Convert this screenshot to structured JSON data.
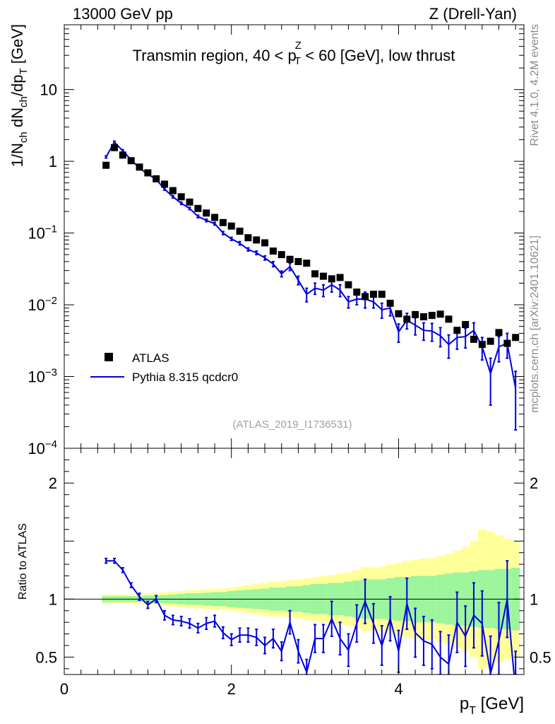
{
  "header": {
    "left": "13000 GeV pp",
    "right": "Z (Drell-Yan)"
  },
  "side_notes": {
    "rivet": "Rivet 4.1.0,  4.2M events",
    "mcplots": "mcplots.cern.ch [arXiv:2401.10621]"
  },
  "reference_id": "(ATLAS_2019_I1736531)",
  "chart_data": {
    "type": "scatter",
    "title": "Transmin region, 40 < p_T^Z < 60 [GeV], low thrust",
    "title_parts": {
      "pre": "Transmin region, 40 < p",
      "sup": "Z",
      "sub": "T",
      "post": " < 60 [GeV], low thrust"
    },
    "xlabel": "p_T [GeV]",
    "xlabel_parts": {
      "main": "p",
      "sub": "T",
      "unit": " [GeV]"
    },
    "ylabel": "1/N_ch dN_ch/dp_T [GeV]",
    "ylabel_parts": [
      "1/N",
      "ch",
      " dN",
      "ch",
      "/dp",
      "T",
      " [GeV]"
    ],
    "ratio_ylabel": "Ratio to ATLAS",
    "xlim": [
      0,
      5.5
    ],
    "ylim": [
      0.0001,
      80
    ],
    "ratio_ylim": [
      0.35,
      2.3
    ],
    "x_ticks": [
      0,
      2,
      4
    ],
    "x_tick_labels": [
      "0",
      "2",
      "4"
    ],
    "y_ticks": [
      10,
      1,
      0.1,
      0.01,
      0.001,
      0.0001
    ],
    "y_tick_labels": [
      [
        "10",
        ""
      ],
      [
        "1",
        ""
      ],
      [
        "10",
        "−1"
      ],
      [
        "10",
        "−2"
      ],
      [
        "10",
        "−3"
      ],
      [
        "10",
        "−4"
      ]
    ],
    "ratio_ticks": [
      2,
      1,
      0.5
    ],
    "ratio_tick_labels": [
      "2",
      "1",
      "0.5"
    ],
    "legend_position": "lower-left",
    "legend": [
      "ATLAS",
      "Pythia 8.315 qcdcr0"
    ],
    "colors": {
      "data": "#000000",
      "mc": "#0000dd",
      "band_inner": "#9cf59c",
      "band_outer": "#ffff99"
    },
    "x": [
      0.5,
      0.6,
      0.7,
      0.8,
      0.9,
      1.0,
      1.1,
      1.2,
      1.3,
      1.4,
      1.5,
      1.6,
      1.7,
      1.8,
      1.9,
      2.0,
      2.1,
      2.2,
      2.3,
      2.4,
      2.5,
      2.6,
      2.7,
      2.8,
      2.9,
      3.0,
      3.1,
      3.2,
      3.3,
      3.4,
      3.5,
      3.6,
      3.7,
      3.8,
      3.9,
      4.0,
      4.1,
      4.2,
      4.3,
      4.4,
      4.5,
      4.6,
      4.7,
      4.8,
      4.9,
      5.0,
      5.1,
      5.2,
      5.3,
      5.4
    ],
    "data_values": [
      0.88,
      1.55,
      1.22,
      1.02,
      0.83,
      0.69,
      0.57,
      0.48,
      0.39,
      0.32,
      0.27,
      0.22,
      0.19,
      0.165,
      0.14,
      0.125,
      0.106,
      0.086,
      0.08,
      0.073,
      0.056,
      0.05,
      0.043,
      0.04,
      0.038,
      0.027,
      0.025,
      0.023,
      0.024,
      0.019,
      0.015,
      0.013,
      0.014,
      0.014,
      0.0105,
      0.0075,
      0.0063,
      0.0073,
      0.0068,
      0.0071,
      0.0074,
      0.0063,
      0.0044,
      0.0053,
      0.0033,
      0.0028,
      0.0031,
      0.0041,
      0.0029,
      0.0035
    ],
    "mc_values": [
      1.15,
      1.85,
      1.4,
      1.05,
      0.8,
      0.66,
      0.56,
      0.41,
      0.32,
      0.26,
      0.22,
      0.17,
      0.15,
      0.135,
      0.1,
      0.083,
      0.072,
      0.059,
      0.053,
      0.045,
      0.037,
      0.027,
      0.034,
      0.022,
      0.014,
      0.017,
      0.016,
      0.019,
      0.016,
      0.011,
      0.012,
      0.012,
      0.011,
      0.0085,
      0.009,
      0.0042,
      0.0061,
      0.0052,
      0.0044,
      0.0043,
      0.0037,
      0.0028,
      0.0035,
      0.0036,
      0.0044,
      0.0026,
      0.0011,
      0.0026,
      0.0029,
      0.00068
    ],
    "mc_errors": [
      0.04,
      0.06,
      0.05,
      0.04,
      0.03,
      0.03,
      0.02,
      0.015,
      0.012,
      0.01,
      0.008,
      0.007,
      0.006,
      0.006,
      0.005,
      0.004,
      0.004,
      0.003,
      0.003,
      0.003,
      0.003,
      0.0025,
      0.004,
      0.003,
      0.003,
      0.003,
      0.003,
      0.004,
      0.003,
      0.002,
      0.002,
      0.003,
      0.002,
      0.002,
      0.002,
      0.0012,
      0.0015,
      0.0014,
      0.0012,
      0.0012,
      0.0011,
      0.001,
      0.0011,
      0.0011,
      0.0012,
      0.0009,
      0.0007,
      0.001,
      0.0011,
      0.0005
    ],
    "mc_ratio": [
      1.33,
      1.33,
      1.25,
      1.12,
      1.02,
      0.95,
      1.0,
      0.86,
      0.82,
      0.81,
      0.79,
      0.75,
      0.79,
      0.81,
      0.71,
      0.65,
      0.69,
      0.69,
      0.67,
      0.6,
      0.66,
      0.55,
      0.8,
      0.55,
      0.37,
      0.66,
      0.66,
      0.83,
      0.66,
      0.56,
      0.79,
      0.98,
      0.79,
      0.6,
      0.83,
      0.55,
      0.96,
      0.71,
      0.64,
      0.61,
      0.5,
      0.44,
      0.8,
      0.68,
      0.86,
      0.79,
      0.36,
      0.64,
      1.0,
      0.2
    ],
    "mc_ratio_errors": [
      0.02,
      0.02,
      0.02,
      0.02,
      0.03,
      0.03,
      0.03,
      0.04,
      0.04,
      0.04,
      0.04,
      0.04,
      0.05,
      0.05,
      0.05,
      0.05,
      0.06,
      0.06,
      0.07,
      0.07,
      0.08,
      0.08,
      0.1,
      0.1,
      0.11,
      0.12,
      0.12,
      0.15,
      0.14,
      0.14,
      0.16,
      0.19,
      0.17,
      0.17,
      0.19,
      0.18,
      0.22,
      0.21,
      0.21,
      0.21,
      0.22,
      0.25,
      0.26,
      0.26,
      0.28,
      0.28,
      0.32,
      0.33,
      0.33,
      0.35
    ],
    "band_inner_halfwidth": [
      0.025,
      0.025,
      0.025,
      0.025,
      0.025,
      0.03,
      0.03,
      0.035,
      0.04,
      0.045,
      0.05,
      0.05,
      0.055,
      0.06,
      0.06,
      0.07,
      0.075,
      0.08,
      0.085,
      0.09,
      0.1,
      0.1,
      0.11,
      0.11,
      0.12,
      0.13,
      0.13,
      0.14,
      0.14,
      0.15,
      0.16,
      0.17,
      0.17,
      0.17,
      0.18,
      0.19,
      0.19,
      0.2,
      0.2,
      0.2,
      0.21,
      0.22,
      0.23,
      0.23,
      0.24,
      0.25,
      0.25,
      0.26,
      0.26,
      0.27
    ],
    "band_outer_halfwidth": [
      0.04,
      0.04,
      0.04,
      0.04,
      0.045,
      0.05,
      0.05,
      0.06,
      0.065,
      0.07,
      0.075,
      0.08,
      0.085,
      0.09,
      0.09,
      0.1,
      0.11,
      0.12,
      0.13,
      0.14,
      0.15,
      0.15,
      0.16,
      0.17,
      0.18,
      0.19,
      0.2,
      0.21,
      0.22,
      0.23,
      0.25,
      0.28,
      0.27,
      0.28,
      0.3,
      0.31,
      0.33,
      0.34,
      0.35,
      0.35,
      0.37,
      0.39,
      0.42,
      0.45,
      0.5,
      0.6,
      0.58,
      0.55,
      0.52,
      0.5
    ]
  }
}
